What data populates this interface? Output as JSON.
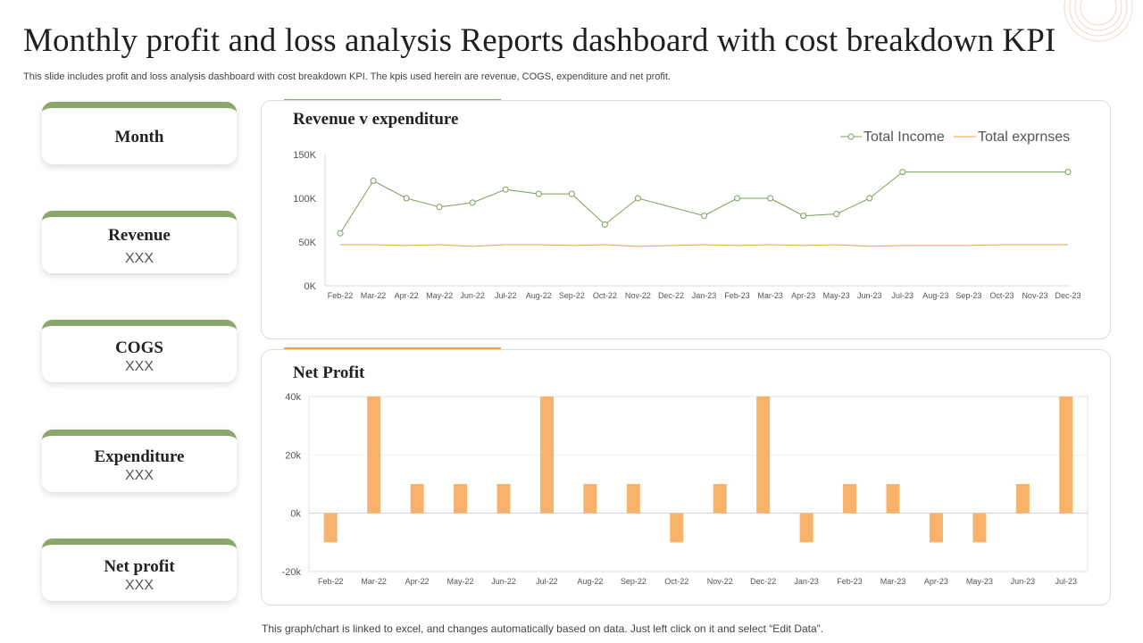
{
  "header": {
    "title": "Monthly profit and loss analysis Reports dashboard with cost breakdown KPI",
    "subtitle": "This slide includes profit and loss analysis dashboard with cost breakdown KPI. The kpis used herein are revenue, COGS,  expenditure and net profit."
  },
  "kpis": [
    {
      "label": "Month",
      "value": ""
    },
    {
      "label": "Revenue",
      "value": "XXX"
    },
    {
      "label": "COGS",
      "value": "XXX"
    },
    {
      "label": "Expenditure",
      "value": "XXX"
    },
    {
      "label": "Net profit",
      "value": "XXX"
    }
  ],
  "colors": {
    "accent_green": "#8aa66a",
    "income_line": "#7aa05a",
    "expense_line": "#f0a040",
    "bar": "#f8b26a"
  },
  "footnote": "This graph/chart is linked to excel, and changes automatically based on data. Just left click on it and select “Edit Data”.",
  "chart_data": [
    {
      "type": "line",
      "title": "Revenue v expenditure",
      "categories": [
        "Feb-22",
        "Mar-22",
        "Apr-22",
        "May-22",
        "Jun-22",
        "Jul-22",
        "Aug-22",
        "Sep-22",
        "Oct-22",
        "Nov-22",
        "Dec-22",
        "Jan-23",
        "Feb-23",
        "Mar-23",
        "Apr-23",
        "May-23",
        "Jun-23",
        "Jul-23",
        "Aug-23",
        "Sep-23",
        "Oct-23",
        "Nov-23",
        "Dec-23"
      ],
      "series": [
        {
          "name": "Total Income",
          "values": [
            60000,
            120000,
            100000,
            90000,
            95000,
            110000,
            105000,
            105000,
            70000,
            100000,
            null,
            80000,
            100000,
            100000,
            80000,
            82000,
            100000,
            130000,
            null,
            null,
            null,
            null,
            130000
          ]
        },
        {
          "name": "Total exprnses",
          "values": [
            47000,
            47000,
            46000,
            47000,
            45000,
            47000,
            47000,
            46000,
            47000,
            45000,
            46000,
            47000,
            46000,
            47000,
            46000,
            47000,
            45000,
            46000,
            46000,
            46000,
            47000,
            47000,
            47000
          ]
        }
      ],
      "yticks": [
        "0K",
        "50K",
        "100K",
        "150K"
      ],
      "ylim": [
        0,
        150000
      ],
      "legend": "top-right"
    },
    {
      "type": "bar",
      "title": "Net Profit",
      "categories": [
        "Feb-22",
        "Mar-22",
        "Apr-22",
        "May-22",
        "Jun-22",
        "Jul-22",
        "Aug-22",
        "Sep-22",
        "Oct-22",
        "Nov-22",
        "Dec-22",
        "Jan-23",
        "Feb-23",
        "Mar-23",
        "Apr-23",
        "May-23",
        "Jun-23",
        "Jul-23"
      ],
      "values": [
        -10000,
        40000,
        10000,
        10000,
        10000,
        40000,
        10000,
        10000,
        -10000,
        10000,
        40000,
        -10000,
        10000,
        10000,
        -10000,
        -10000,
        10000,
        40000
      ],
      "yticks": [
        "-20k",
        "0k",
        "20k",
        "40k"
      ],
      "ylim": [
        -20000,
        40000
      ]
    }
  ]
}
